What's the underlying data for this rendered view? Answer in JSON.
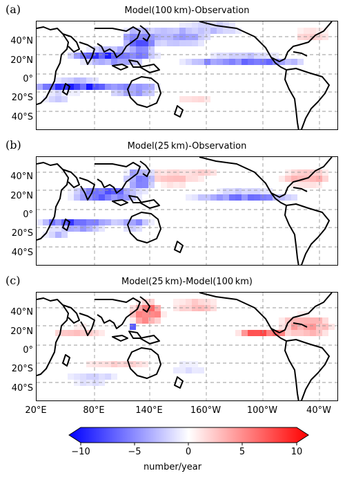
{
  "panels": [
    {
      "label": "(a)",
      "title": "Model(100 km)-Observation"
    },
    {
      "label": "(b)",
      "title": "Model(25 km)-Observation"
    },
    {
      "label": "(c)",
      "title": "Model(25 km)-Model(100 km)"
    }
  ],
  "lat_ticks": [
    "40°N",
    "20°N",
    "0°",
    "20°S",
    "40°S"
  ],
  "lon_ticks": [
    "20°E",
    "80°E",
    "140°E",
    "160°W",
    "100°W",
    "40°W"
  ],
  "colorbar": {
    "ticks": [
      "−10",
      "−5",
      "0",
      "5",
      "10"
    ],
    "label": "number/year",
    "range": [
      -10,
      10
    ],
    "colors": {
      "min": "#0000ff",
      "mid": "#ffffff",
      "max": "#ff0000"
    }
  }
}
